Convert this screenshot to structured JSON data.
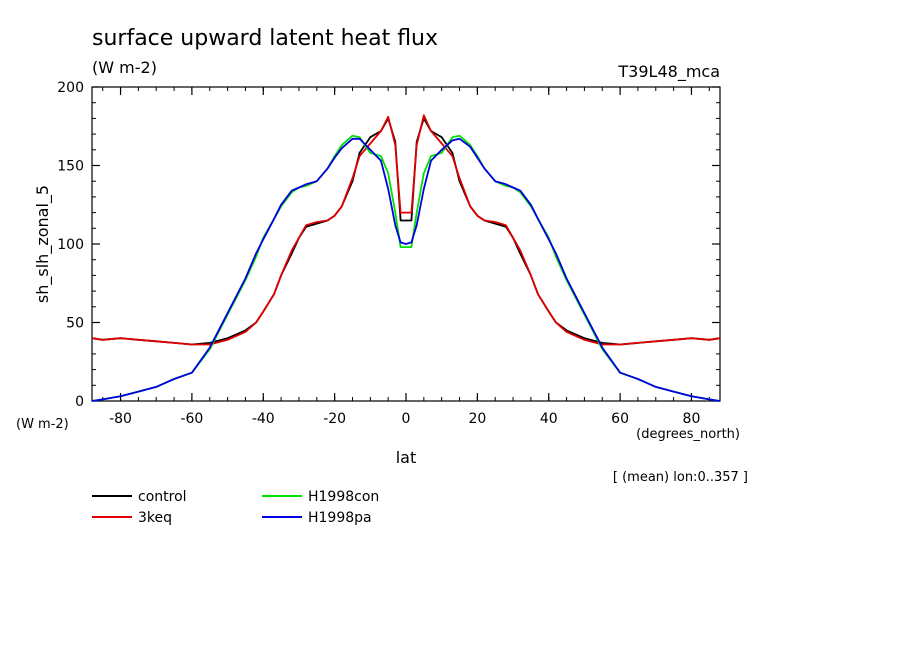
{
  "chart_data": {
    "type": "line",
    "title": "surface upward latent heat flux",
    "subtitle": "(W m-2)",
    "tag": "T39L48_mca",
    "xlabel": "lat",
    "xunit": "(degrees_north)",
    "ylabel": "sh_slh_zonal_5",
    "yunit": "(W m-2)",
    "note": "[ (mean) lon:0..357 ]",
    "xlim": [
      -88,
      88
    ],
    "ylim": [
      0,
      200
    ],
    "xticks": [
      -80,
      -60,
      -40,
      -20,
      0,
      20,
      40,
      60,
      80
    ],
    "xtick_labels": [
      "-80",
      "-60",
      "-40",
      "-20",
      "0",
      "20",
      "40",
      "60",
      "80"
    ],
    "yticks": [
      0,
      50,
      100,
      150,
      200
    ],
    "ytick_labels": [
      "0",
      "50",
      "100",
      "150",
      "200"
    ],
    "grid": false,
    "legend_position": "bottom-left",
    "x": [
      -88,
      -85,
      -80,
      -75,
      -70,
      -65,
      -60,
      -55,
      -50,
      -45,
      -42,
      -40,
      -37,
      -35,
      -32,
      -30,
      -28,
      -25,
      -22,
      -20,
      -18,
      -15,
      -13,
      -10,
      -7,
      -5,
      -3,
      -1.5,
      0,
      1.5,
      3,
      5,
      7,
      10,
      13,
      15,
      18,
      20,
      22,
      25,
      28,
      30,
      32,
      35,
      37,
      40,
      42,
      45,
      50,
      55,
      60,
      65,
      70,
      75,
      80,
      85,
      88
    ],
    "series": [
      {
        "name": "control",
        "color": "#000000",
        "values": [
          40,
          39,
          40,
          39,
          38,
          37,
          36,
          37,
          40,
          45,
          50,
          57,
          68,
          80,
          94,
          104,
          111,
          113,
          115,
          118,
          124,
          140,
          158,
          168,
          172,
          180,
          165,
          115,
          115,
          115,
          165,
          180,
          172,
          168,
          158,
          140,
          124,
          118,
          115,
          113,
          111,
          104,
          94,
          80,
          68,
          57,
          50,
          45,
          40,
          37,
          36,
          37,
          38,
          39,
          40,
          39,
          40
        ]
      },
      {
        "name": "3keq",
        "color": "#e00000",
        "values": [
          40,
          39,
          40,
          39,
          38,
          37,
          36,
          36,
          39,
          44,
          50,
          57,
          68,
          80,
          96,
          104,
          112,
          114,
          115,
          118,
          124,
          142,
          156,
          164,
          172,
          181,
          163,
          120,
          120,
          120,
          163,
          182,
          172,
          164,
          156,
          142,
          124,
          118,
          115,
          114,
          112,
          104,
          96,
          80,
          68,
          57,
          50,
          44,
          39,
          36,
          36,
          37,
          38,
          39,
          40,
          39,
          40
        ]
      },
      {
        "name": "H1998con",
        "color": "#00e000",
        "values": [
          0,
          1,
          3,
          6,
          9,
          14,
          18,
          33,
          55,
          77,
          92,
          104,
          116,
          124,
          133,
          136,
          137,
          140,
          148,
          156,
          163,
          169,
          168,
          158,
          156,
          145,
          120,
          98,
          98,
          98,
          120,
          145,
          156,
          158,
          168,
          169,
          163,
          156,
          148,
          140,
          137,
          136,
          133,
          124,
          116,
          104,
          92,
          77,
          55,
          33,
          18,
          14,
          9,
          6,
          3,
          1,
          0
        ]
      },
      {
        "name": "H1998pa",
        "color": "#0000e0",
        "values": [
          0,
          1,
          3,
          6,
          9,
          14,
          18,
          34,
          56,
          78,
          94,
          103,
          116,
          125,
          134,
          136,
          138,
          140,
          148,
          155,
          161,
          167,
          167,
          160,
          153,
          135,
          112,
          101,
          100,
          101,
          112,
          135,
          153,
          160,
          166,
          167,
          162,
          155,
          148,
          140,
          138,
          136,
          134,
          125,
          116,
          103,
          94,
          78,
          56,
          34,
          18,
          14,
          9,
          6,
          3,
          1,
          0
        ]
      }
    ],
    "legend": [
      {
        "label": "control",
        "color": "#000000"
      },
      {
        "label": "3keq",
        "color": "#e00000"
      },
      {
        "label": "H1998con",
        "color": "#00e000"
      },
      {
        "label": "H1998pa",
        "color": "#0000e0"
      }
    ]
  }
}
